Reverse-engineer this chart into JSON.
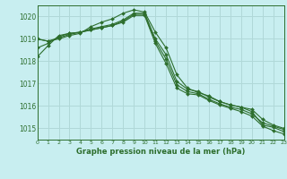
{
  "title": "Graphe pression niveau de la mer (hPa)",
  "bg_color": "#c8eef0",
  "grid_color": "#b0d8d8",
  "line_color": "#2d6e2d",
  "xlim": [
    0,
    23
  ],
  "ylim": [
    1014.5,
    1020.5
  ],
  "yticks": [
    1015,
    1016,
    1017,
    1018,
    1019,
    1020
  ],
  "xticks": [
    0,
    1,
    2,
    3,
    4,
    5,
    6,
    7,
    8,
    9,
    10,
    11,
    12,
    13,
    14,
    15,
    16,
    17,
    18,
    19,
    20,
    21,
    22,
    23
  ],
  "series": [
    [
      1019.0,
      1018.9,
      1019.0,
      1019.15,
      1019.25,
      1019.55,
      1019.75,
      1019.9,
      1020.15,
      1020.3,
      1020.2,
      1019.3,
      1018.6,
      1017.4,
      1016.8,
      1016.6,
      1016.45,
      1016.2,
      1016.05,
      1015.95,
      1015.75,
      1015.15,
      1015.05,
      1014.85
    ],
    [
      1019.0,
      1018.9,
      1019.05,
      1019.2,
      1019.3,
      1019.45,
      1019.55,
      1019.65,
      1019.85,
      1020.15,
      1020.15,
      1019.0,
      1018.3,
      1017.1,
      1016.75,
      1016.65,
      1016.4,
      1016.2,
      1016.05,
      1015.95,
      1015.85,
      1015.4,
      1015.15,
      1015.0
    ],
    [
      1018.6,
      1018.8,
      1019.1,
      1019.25,
      1019.3,
      1019.4,
      1019.5,
      1019.6,
      1019.8,
      1020.1,
      1020.1,
      1018.9,
      1018.1,
      1016.95,
      1016.65,
      1016.55,
      1016.3,
      1016.1,
      1015.95,
      1015.85,
      1015.65,
      1015.25,
      1015.1,
      1014.95
    ],
    [
      1018.2,
      1018.7,
      1019.15,
      1019.25,
      1019.3,
      1019.4,
      1019.5,
      1019.6,
      1019.75,
      1020.05,
      1020.05,
      1018.8,
      1017.9,
      1016.8,
      1016.55,
      1016.5,
      1016.25,
      1016.05,
      1015.9,
      1015.75,
      1015.55,
      1015.1,
      1014.9,
      1014.75
    ]
  ]
}
